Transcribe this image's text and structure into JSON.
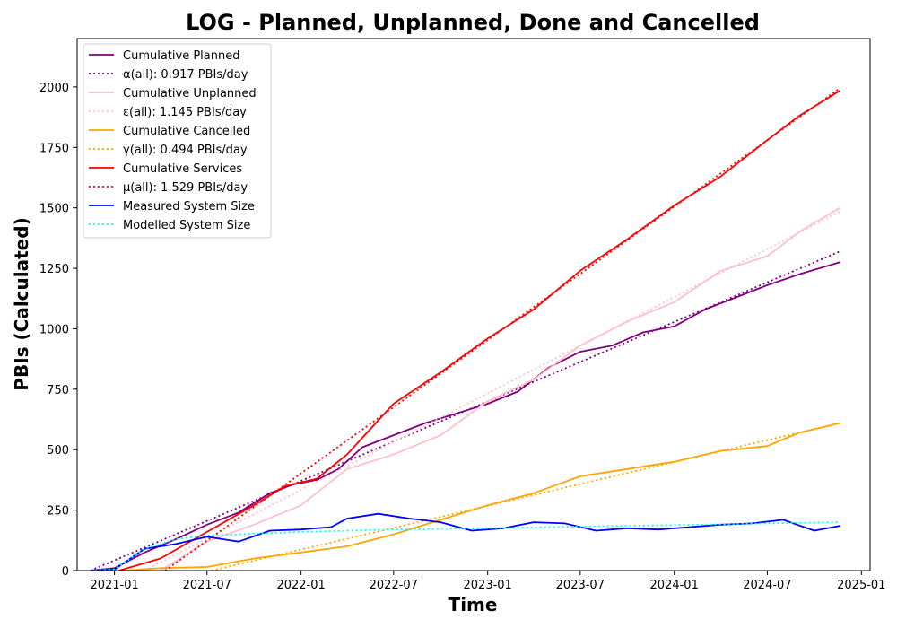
{
  "chart_data": {
    "type": "line",
    "title": "LOG - Planned, Unplanned, Done  and Cancelled",
    "xlabel": "Time",
    "ylabel": "PBIs (Calculated)",
    "xlim": [
      "2020-10-20",
      "2025-01-18"
    ],
    "ylim": [
      0,
      2200
    ],
    "x_ticks": [
      {
        "date": "2021-01-01",
        "label": "2021-01"
      },
      {
        "date": "2021-07-01",
        "label": "2021-07"
      },
      {
        "date": "2022-01-01",
        "label": "2022-01"
      },
      {
        "date": "2022-07-01",
        "label": "2022-07"
      },
      {
        "date": "2023-01-01",
        "label": "2023-01"
      },
      {
        "date": "2023-07-01",
        "label": "2023-07"
      },
      {
        "date": "2024-01-01",
        "label": "2024-01"
      },
      {
        "date": "2024-07-01",
        "label": "2024-07"
      },
      {
        "date": "2025-01-01",
        "label": "2025-01"
      }
    ],
    "y_ticks": [
      0,
      250,
      500,
      750,
      1000,
      1250,
      1500,
      1750,
      2000
    ],
    "grid": false,
    "legend_position": "top-left",
    "series": [
      {
        "name": "Cumulative Planned",
        "color": "#800080",
        "style": "solid",
        "points": [
          [
            "2020-11-15",
            0
          ],
          [
            "2021-01-01",
            10
          ],
          [
            "2021-03-01",
            75
          ],
          [
            "2021-05-01",
            130
          ],
          [
            "2021-07-01",
            190
          ],
          [
            "2021-09-01",
            240
          ],
          [
            "2021-11-01",
            320
          ],
          [
            "2021-12-15",
            355
          ],
          [
            "2022-02-01",
            375
          ],
          [
            "2022-03-15",
            420
          ],
          [
            "2022-05-01",
            510
          ],
          [
            "2022-07-01",
            560
          ],
          [
            "2022-09-01",
            610
          ],
          [
            "2022-11-01",
            650
          ],
          [
            "2023-01-01",
            690
          ],
          [
            "2023-03-01",
            740
          ],
          [
            "2023-05-01",
            840
          ],
          [
            "2023-07-01",
            905
          ],
          [
            "2023-09-01",
            930
          ],
          [
            "2023-11-01",
            985
          ],
          [
            "2024-01-01",
            1010
          ],
          [
            "2024-03-01",
            1080
          ],
          [
            "2024-05-01",
            1130
          ],
          [
            "2024-07-01",
            1180
          ],
          [
            "2024-09-01",
            1225
          ],
          [
            "2024-11-20",
            1275
          ]
        ]
      },
      {
        "name": "α(all): 0.917 PBIs/day",
        "color": "#800080",
        "style": "dotted",
        "points": [
          [
            "2020-11-15",
            0
          ],
          [
            "2024-11-20",
            1320
          ]
        ]
      },
      {
        "name": "Cumulative Unplanned",
        "color": "#ffc0cb",
        "style": "solid",
        "points": [
          [
            "2021-04-01",
            0
          ],
          [
            "2021-07-01",
            120
          ],
          [
            "2021-10-01",
            190
          ],
          [
            "2022-01-01",
            270
          ],
          [
            "2022-04-01",
            420
          ],
          [
            "2022-07-01",
            480
          ],
          [
            "2022-10-01",
            560
          ],
          [
            "2023-01-01",
            700
          ],
          [
            "2023-04-01",
            790
          ],
          [
            "2023-07-01",
            930
          ],
          [
            "2023-10-01",
            1030
          ],
          [
            "2024-01-01",
            1110
          ],
          [
            "2024-04-01",
            1240
          ],
          [
            "2024-07-01",
            1300
          ],
          [
            "2024-09-01",
            1400
          ],
          [
            "2024-11-20",
            1500
          ]
        ]
      },
      {
        "name": "ε(all): 1.145 PBIs/day",
        "color": "#ffc0cb",
        "style": "dotted",
        "points": [
          [
            "2021-03-01",
            0
          ],
          [
            "2024-11-20",
            1485
          ]
        ]
      },
      {
        "name": "Cumulative Cancelled",
        "color": "#ffa500",
        "style": "solid",
        "points": [
          [
            "2021-01-20",
            0
          ],
          [
            "2021-04-01",
            10
          ],
          [
            "2021-07-01",
            15
          ],
          [
            "2021-10-01",
            50
          ],
          [
            "2022-01-01",
            75
          ],
          [
            "2022-04-01",
            100
          ],
          [
            "2022-07-01",
            150
          ],
          [
            "2022-10-01",
            210
          ],
          [
            "2023-01-01",
            270
          ],
          [
            "2023-04-01",
            320
          ],
          [
            "2023-07-01",
            390
          ],
          [
            "2023-10-01",
            420
          ],
          [
            "2024-01-01",
            450
          ],
          [
            "2024-04-01",
            495
          ],
          [
            "2024-07-01",
            515
          ],
          [
            "2024-09-01",
            570
          ],
          [
            "2024-11-20",
            610
          ]
        ]
      },
      {
        "name": "γ(all): 0.494 PBIs/day",
        "color": "#ffa500",
        "style": "dotted",
        "points": [
          [
            "2021-07-10",
            0
          ],
          [
            "2024-11-20",
            610
          ]
        ]
      },
      {
        "name": "Cumulative Services",
        "color": "#ff0000",
        "style": "solid",
        "points": [
          [
            "2021-01-10",
            0
          ],
          [
            "2021-04-01",
            50
          ],
          [
            "2021-07-01",
            160
          ],
          [
            "2021-10-01",
            270
          ],
          [
            "2021-12-01",
            350
          ],
          [
            "2022-02-01",
            380
          ],
          [
            "2022-04-01",
            480
          ],
          [
            "2022-07-01",
            690
          ],
          [
            "2022-10-01",
            820
          ],
          [
            "2023-01-01",
            960
          ],
          [
            "2023-04-01",
            1080
          ],
          [
            "2023-07-01",
            1240
          ],
          [
            "2023-10-01",
            1370
          ],
          [
            "2024-01-01",
            1510
          ],
          [
            "2024-04-01",
            1630
          ],
          [
            "2024-07-01",
            1780
          ],
          [
            "2024-09-01",
            1880
          ],
          [
            "2024-11-20",
            1985
          ]
        ]
      },
      {
        "name": "μ(all): 1.529 PBIs/day",
        "color": "#ff0000",
        "style": "dotted",
        "points": [
          [
            "2021-04-10",
            0
          ],
          [
            "2024-11-20",
            1995
          ]
        ]
      },
      {
        "name": "Measured System Size",
        "color": "#0000ff",
        "style": "solid",
        "points": [
          [
            "2020-11-15",
            0
          ],
          [
            "2021-01-01",
            5
          ],
          [
            "2021-03-01",
            90
          ],
          [
            "2021-05-01",
            110
          ],
          [
            "2021-07-01",
            140
          ],
          [
            "2021-09-01",
            120
          ],
          [
            "2021-11-01",
            165
          ],
          [
            "2022-01-01",
            170
          ],
          [
            "2022-03-01",
            180
          ],
          [
            "2022-04-01",
            215
          ],
          [
            "2022-06-01",
            235
          ],
          [
            "2022-08-01",
            215
          ],
          [
            "2022-10-01",
            200
          ],
          [
            "2022-12-01",
            165
          ],
          [
            "2023-02-01",
            175
          ],
          [
            "2023-04-01",
            200
          ],
          [
            "2023-06-01",
            195
          ],
          [
            "2023-08-01",
            165
          ],
          [
            "2023-10-01",
            175
          ],
          [
            "2023-12-01",
            170
          ],
          [
            "2024-02-01",
            180
          ],
          [
            "2024-04-01",
            190
          ],
          [
            "2024-06-01",
            195
          ],
          [
            "2024-08-01",
            210
          ],
          [
            "2024-10-01",
            165
          ],
          [
            "2024-11-20",
            185
          ]
        ]
      },
      {
        "name": "Modelled System Size",
        "color": "#00ffff",
        "style": "dotted",
        "points": [
          [
            "2020-11-15",
            0
          ],
          [
            "2021-01-01",
            5
          ],
          [
            "2021-03-01",
            90
          ],
          [
            "2021-05-01",
            130
          ],
          [
            "2021-07-01",
            145
          ],
          [
            "2022-01-01",
            160
          ],
          [
            "2022-07-01",
            170
          ],
          [
            "2023-01-01",
            175
          ],
          [
            "2023-07-01",
            182
          ],
          [
            "2024-01-01",
            188
          ],
          [
            "2024-07-01",
            195
          ],
          [
            "2024-11-20",
            200
          ]
        ]
      }
    ]
  }
}
